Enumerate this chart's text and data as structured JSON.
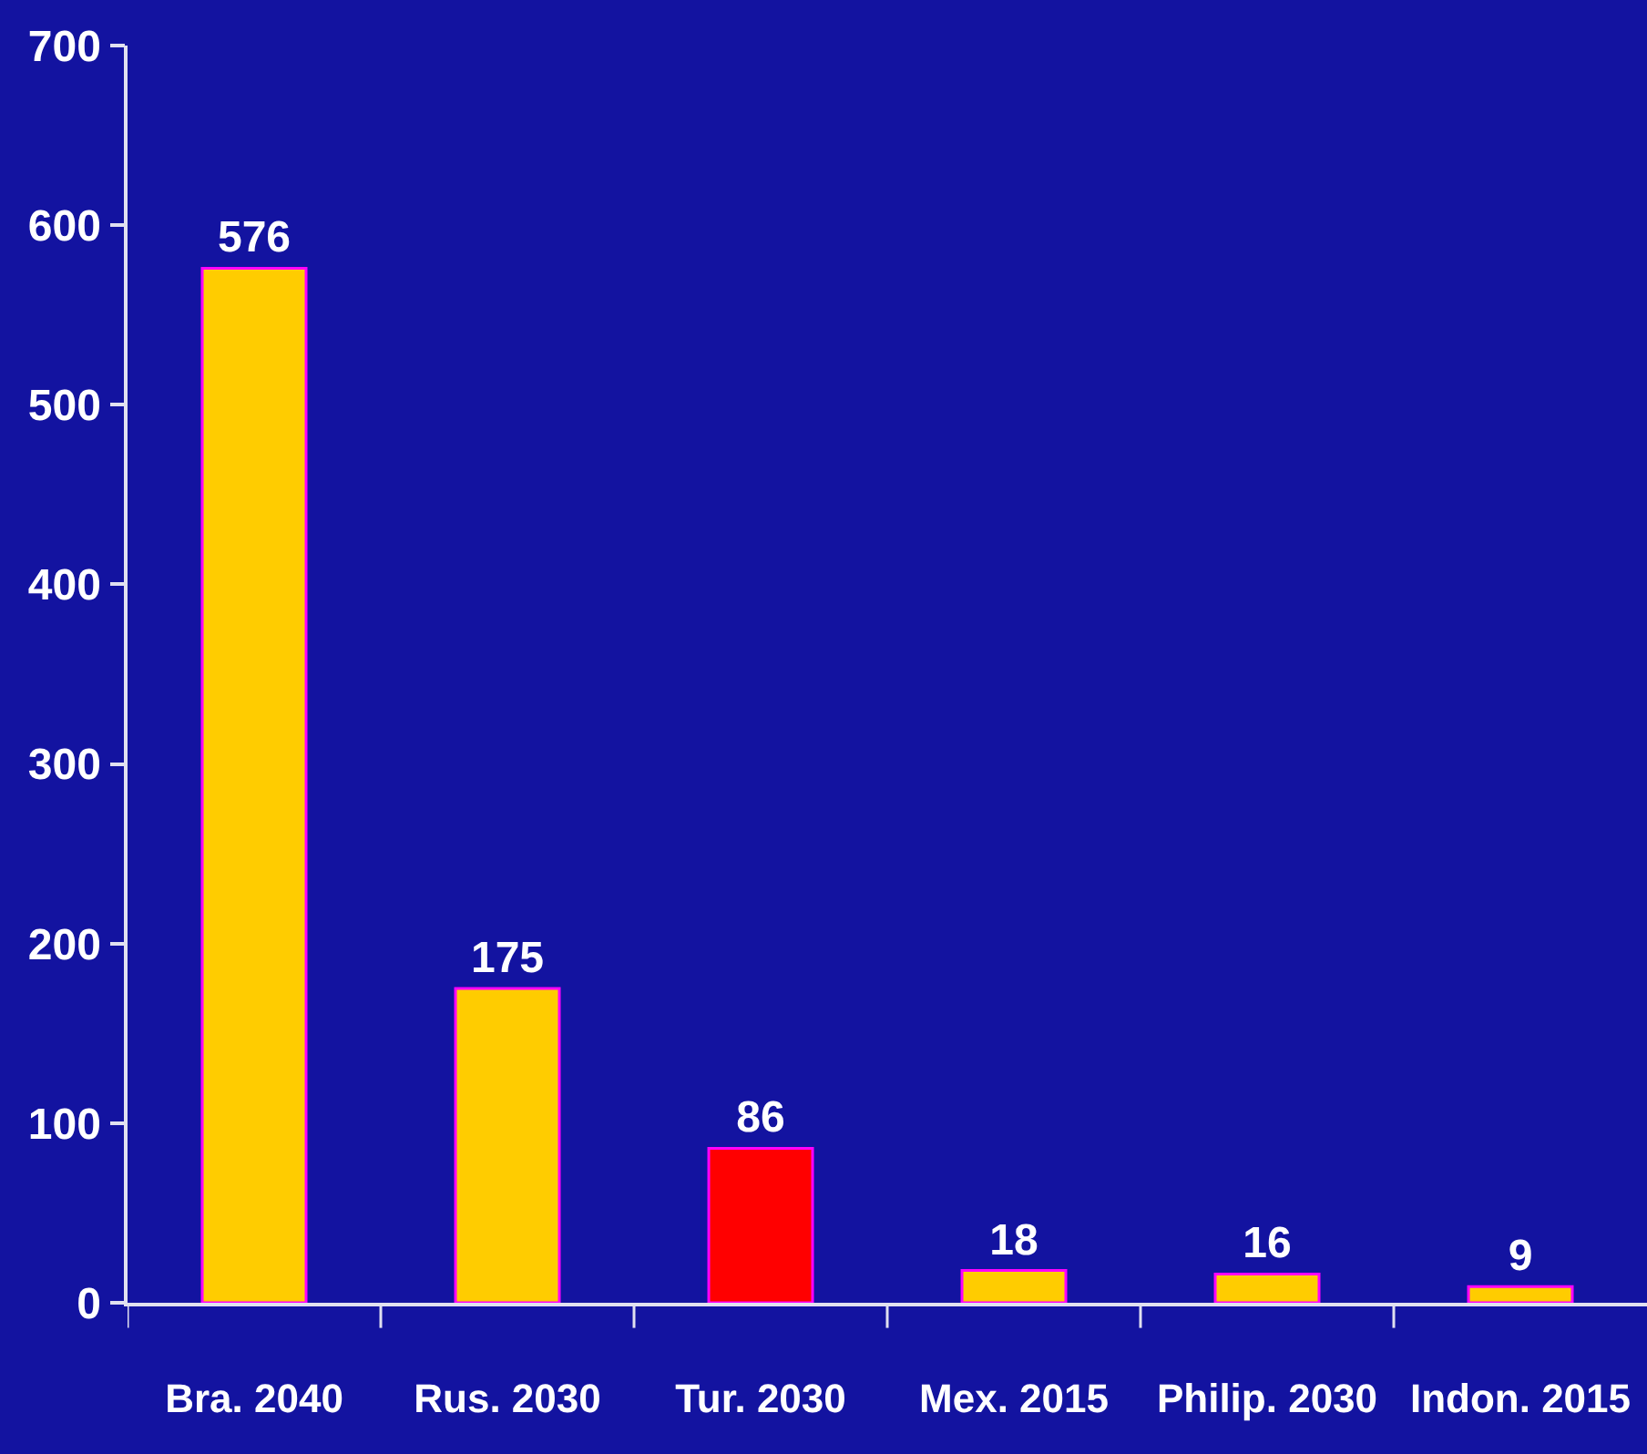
{
  "chart_data": {
    "type": "bar",
    "categories": [
      "Bra. 2040",
      "Rus. 2030",
      "Tur. 2030",
      "Mex. 2015",
      "Philip. 2030",
      "Indon. 2015"
    ],
    "values": [
      576,
      175,
      86,
      18,
      16,
      9
    ],
    "colors": [
      "#ffcc00",
      "#ffcc00",
      "#ff0000",
      "#ffcc00",
      "#ffcc00",
      "#ffcc00"
    ],
    "ylim": [
      0,
      700
    ],
    "yticks": [
      0,
      100,
      200,
      300,
      400,
      500,
      600,
      700
    ],
    "data_labels": true,
    "grid": false
  }
}
